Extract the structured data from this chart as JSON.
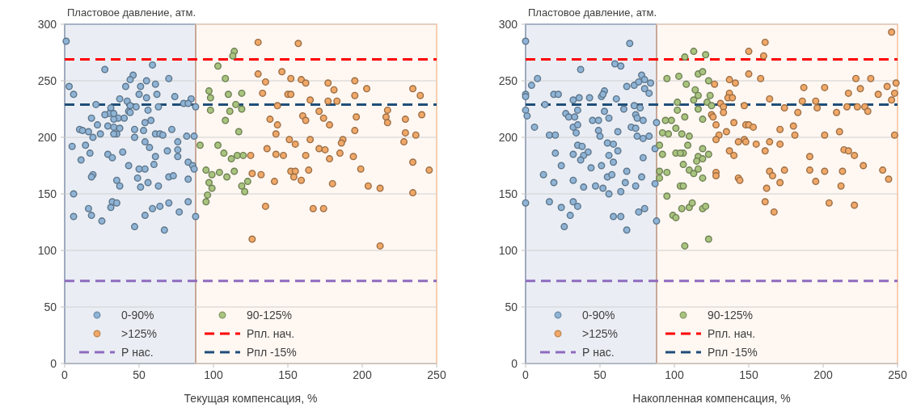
{
  "chart_data": [
    {
      "type": "scatter",
      "xlabel": "Текущая компенсация, %",
      "ylabel": "Пластовое давление, атм.",
      "xlim": [
        0,
        250
      ],
      "xticks": [
        0,
        50,
        100,
        150,
        200,
        250
      ],
      "ylim": [
        0,
        300
      ],
      "yticks": [
        0,
        50,
        100,
        150,
        200,
        250,
        300
      ],
      "grid": "y",
      "legend": "bottom",
      "marker": "circle",
      "series": [
        {
          "name": "0-90%",
          "color": "#8fb4d6",
          "x": [
            1,
            3,
            6,
            27,
            59,
            46,
            44,
            55,
            61,
            70,
            41,
            51,
            62,
            50,
            55,
            37,
            74,
            85,
            21,
            80,
            83,
            88,
            63,
            42,
            44,
            48,
            31,
            30,
            27,
            43,
            44,
            56,
            40,
            36,
            33,
            33,
            18,
            22,
            58,
            54,
            29,
            33,
            37,
            35,
            33,
            10,
            12,
            16,
            19,
            24,
            47,
            47,
            53,
            61,
            64,
            66,
            72,
            82,
            87,
            5,
            14,
            17,
            11,
            29,
            32,
            39,
            54,
            57,
            69,
            76,
            76,
            76,
            61,
            60,
            43,
            50,
            54,
            83,
            86,
            87,
            19,
            18,
            35,
            37,
            49,
            56,
            51,
            63,
            70,
            73,
            83,
            6,
            16,
            18,
            32,
            35,
            31,
            6,
            25,
            47,
            54,
            59,
            64,
            70,
            77,
            83,
            67,
            88
          ],
          "values": [
            285,
            245,
            238,
            260,
            264,
            255,
            251,
            250,
            247,
            252,
            245,
            245,
            238,
            238,
            235,
            234,
            236,
            234,
            229,
            230,
            230,
            227,
            227,
            232,
            228,
            227,
            226,
            221,
            220,
            223,
            222,
            224,
            217,
            217,
            216,
            221,
            217,
            211,
            215,
            213,
            210,
            209,
            208,
            203,
            203,
            207,
            206,
            205,
            200,
            203,
            207,
            200,
            206,
            203,
            203,
            202,
            207,
            201,
            201,
            192,
            193,
            186,
            180,
            185,
            182,
            187,
            196,
            191,
            188,
            196,
            189,
            183,
            183,
            176,
            175,
            172,
            172,
            178,
            175,
            172,
            167,
            165,
            162,
            157,
            164,
            160,
            156,
            157,
            165,
            166,
            163,
            150,
            137,
            131,
            143,
            142,
            138,
            130,
            126,
            121,
            131,
            137,
            139,
            142,
            134,
            143,
            118,
            130
          ]
        },
        {
          "name": "90-125%",
          "color": "#a9c47f",
          "x": [
            114,
            113,
            103,
            108,
            97,
            98,
            110,
            119,
            98,
            111,
            115,
            119,
            108,
            117,
            91,
            103,
            107,
            112,
            116,
            120,
            95,
            99,
            104,
            109,
            114,
            97,
            99,
            119,
            121,
            123,
            96,
            95
          ],
          "values": [
            276,
            272,
            263,
            252,
            241,
            235,
            238,
            239,
            224,
            223,
            229,
            225,
            215,
            205,
            193,
            193,
            186,
            181,
            184,
            184,
            171,
            167,
            169,
            165,
            170,
            160,
            155,
            157,
            152,
            161,
            149,
            143
          ]
        },
        {
          "name": ">125%",
          "color": "#f0a868",
          "x": [
            130,
            157,
            130,
            135,
            146,
            152,
            159,
            162,
            133,
            150,
            152,
            165,
            177,
            181,
            177,
            183,
            195,
            195,
            203,
            234,
            239,
            143,
            171,
            174,
            160,
            162,
            178,
            138,
            143,
            142,
            196,
            195,
            217,
            216,
            217,
            229,
            229,
            236,
            240,
            228,
            151,
            155,
            165,
            187,
            186,
            136,
            142,
            147,
            162,
            171,
            175,
            178,
            185,
            194,
            125,
            126,
            132,
            152,
            155,
            154,
            159,
            164,
            141,
            180,
            199,
            234,
            245,
            204,
            212,
            234,
            135,
            167,
            174,
            126,
            212
          ],
          "values": [
            284,
            283,
            256,
            249,
            258,
            252,
            251,
            248,
            239,
            238,
            238,
            233,
            248,
            242,
            232,
            232,
            250,
            237,
            243,
            243,
            237,
            228,
            223,
            217,
            219,
            215,
            211,
            216,
            211,
            203,
            218,
            206,
            224,
            218,
            213,
            216,
            204,
            202,
            220,
            196,
            198,
            194,
            198,
            198,
            195,
            190,
            185,
            184,
            184,
            190,
            189,
            181,
            186,
            183,
            184,
            168,
            167,
            170,
            170,
            165,
            162,
            171,
            161,
            159,
            172,
            178,
            171,
            157,
            155,
            151,
            139,
            137,
            137,
            110,
            104
          ]
        }
      ],
      "ref_lines": [
        {
          "axis": "y",
          "value": 269,
          "label": "Рпл. нач.",
          "color": "#ff0000",
          "line_style": "dashed"
        },
        {
          "axis": "y",
          "value": 73,
          "label": "Р нас.",
          "color": "#8e6bbf",
          "line_style": "dashed"
        },
        {
          "axis": "y",
          "value": 229,
          "label": "Рпл -15%",
          "color": "#1f4e79",
          "line_style": "dashed"
        }
      ],
      "bands": [
        {
          "axis": "x",
          "from": 0,
          "to": 88,
          "color": "#2f5597"
        },
        {
          "axis": "x",
          "from": 88,
          "to": 250,
          "color": "#f4b183"
        }
      ]
    },
    {
      "type": "scatter",
      "xlabel": "Накопленная компенсация, %",
      "ylabel": "Пластовое давление, атм.",
      "xlim": [
        0,
        250
      ],
      "xticks": [
        0,
        50,
        100,
        150,
        200,
        250
      ],
      "ylim": [
        0,
        300
      ],
      "yticks": [
        0,
        50,
        100,
        150,
        200,
        250,
        300
      ],
      "grid": "y",
      "legend": "bottom",
      "marker": "circle",
      "series": [
        {
          "name": "0-90%",
          "color": "#8fb4d6",
          "x": [
            0,
            70,
            4,
            8,
            0,
            0,
            19,
            22,
            37,
            60,
            64,
            32,
            36,
            43,
            51,
            53,
            52,
            61,
            68,
            73,
            76,
            78,
            80,
            84,
            80,
            83,
            13,
            0,
            1,
            6,
            27,
            29,
            33,
            35,
            32,
            35,
            34,
            16,
            20,
            45,
            49,
            56,
            53,
            66,
            73,
            77,
            74,
            75,
            79,
            49,
            50,
            62,
            71,
            74,
            75,
            79,
            83,
            88,
            35,
            38,
            42,
            39,
            37,
            32,
            20,
            24,
            55,
            59,
            62,
            56,
            59,
            51,
            44,
            79,
            87,
            68,
            55,
            58,
            78,
            12,
            19,
            32,
            39,
            47,
            52,
            56,
            64,
            67,
            74,
            87,
            0,
            16,
            24,
            30,
            32,
            35,
            26,
            59,
            64,
            76,
            80,
            68,
            88
          ],
          "values": [
            285,
            283,
            246,
            252,
            238,
            236,
            238,
            238,
            260,
            265,
            263,
            233,
            235,
            235,
            236,
            241,
            238,
            234,
            245,
            246,
            249,
            255,
            251,
            248,
            243,
            239,
            229,
            224,
            219,
            209,
            221,
            218,
            218,
            224,
            209,
            211,
            204,
            202,
            202,
            215,
            215,
            217,
            223,
            225,
            228,
            226,
            220,
            217,
            215,
            206,
            201,
            205,
            209,
            208,
            201,
            199,
            201,
            213,
            193,
            192,
            187,
            184,
            180,
            185,
            186,
            175,
            195,
            194,
            188,
            184,
            178,
            175,
            173,
            182,
            190,
            170,
            165,
            167,
            165,
            167,
            160,
            162,
            156,
            157,
            155,
            150,
            152,
            160,
            157,
            159,
            142,
            143,
            138,
            131,
            143,
            139,
            121,
            130,
            130,
            134,
            137,
            118,
            126
          ]
        },
        {
          "name": "90-125%",
          "color": "#a9c47f",
          "x": [
            107,
            113,
            121,
            95,
            103,
            108,
            116,
            119,
            114,
            116,
            123,
            124,
            102,
            116,
            122,
            113,
            102,
            94,
            98,
            107,
            119,
            92,
            96,
            101,
            105,
            110,
            90,
            109,
            92,
            101,
            106,
            104,
            119,
            123,
            116,
            119,
            115,
            90,
            90,
            95,
            106,
            110,
            113,
            116,
            119,
            104,
            106,
            95,
            99,
            101,
            105,
            110,
            112,
            119,
            121,
            123,
            107,
            125
          ],
          "values": [
            271,
            276,
            273,
            252,
            254,
            247,
            256,
            258,
            242,
            237,
            250,
            237,
            231,
            225,
            231,
            233,
            224,
            215,
            215,
            218,
            216,
            204,
            203,
            208,
            203,
            201,
            193,
            193,
            185,
            186,
            186,
            186,
            190,
            185,
            183,
            181,
            179,
            170,
            164,
            169,
            176,
            171,
            168,
            172,
            164,
            157,
            157,
            148,
            131,
            129,
            137,
            138,
            142,
            137,
            139,
            110,
            104,
            228
          ]
        },
        {
          "name": ">125%",
          "color": "#f0a868",
          "x": [
            246,
            161,
            150,
            160,
            150,
            158,
            137,
            141,
            127,
            137,
            136,
            139,
            164,
            131,
            133,
            147,
            174,
            183,
            187,
            201,
            186,
            195,
            196,
            209,
            216,
            217,
            222,
            225,
            232,
            223,
            228,
            230,
            237,
            243,
            249,
            248,
            246,
            133,
            125,
            126,
            128,
            140,
            148,
            150,
            153,
            135,
            130,
            128,
            171,
            180,
            181,
            201,
            211,
            248,
            143,
            147,
            148,
            155,
            164,
            171,
            161,
            137,
            140,
            191,
            214,
            217,
            221,
            227,
            128,
            128,
            143,
            144,
            164,
            166,
            174,
            171,
            191,
            195,
            201,
            213,
            212,
            240,
            244,
            162,
            161,
            167,
            204,
            221
          ],
          "values": [
            293,
            284,
            276,
            272,
            256,
            252,
            251,
            248,
            247,
            239,
            235,
            235,
            234,
            230,
            227,
            228,
            226,
            222,
            244,
            244,
            232,
            232,
            226,
            222,
            227,
            239,
            252,
            243,
            252,
            227,
            227,
            223,
            238,
            245,
            248,
            239,
            233,
            222,
            220,
            218,
            211,
            213,
            211,
            211,
            209,
            205,
            202,
            198,
            207,
            210,
            202,
            202,
            205,
            202,
            196,
            198,
            196,
            194,
            196,
            194,
            188,
            188,
            184,
            183,
            189,
            188,
            184,
            175,
            169,
            166,
            164,
            162,
            170,
            166,
            171,
            160,
            171,
            161,
            170,
            170,
            157,
            171,
            163,
            155,
            143,
            134,
            142,
            140
          ]
        }
      ],
      "ref_lines": [
        {
          "axis": "y",
          "value": 269,
          "label": "Рпл. нач.",
          "color": "#ff0000",
          "line_style": "dashed"
        },
        {
          "axis": "y",
          "value": 73,
          "label": "Р нас.",
          "color": "#8e6bbf",
          "line_style": "dashed"
        },
        {
          "axis": "y",
          "value": 229,
          "label": "Рпл -15%",
          "color": "#1f4e79",
          "line_style": "dashed"
        }
      ],
      "bands": [
        {
          "axis": "x",
          "from": 0,
          "to": 88,
          "color": "#2f5597"
        },
        {
          "axis": "x",
          "from": 88,
          "to": 250,
          "color": "#f4b183"
        }
      ]
    }
  ]
}
